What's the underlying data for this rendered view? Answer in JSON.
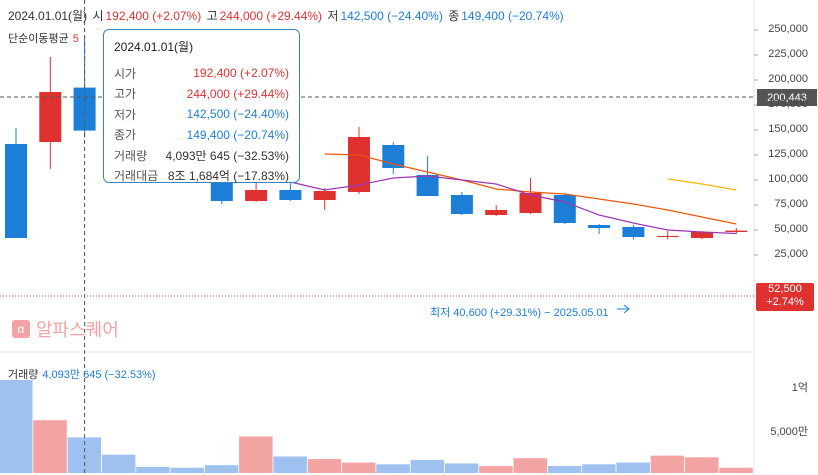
{
  "header": {
    "date": "2024.01.01(월)",
    "open_label": "시",
    "open_value": "192,400 (+2.07%)",
    "high_label": "고",
    "high_value": "244,000 (+29.44%)",
    "low_label": "저",
    "low_value": "142,500 (−24.40%)",
    "close_label": "종",
    "close_value": "149,400 (−20.74%)"
  },
  "ma_legend": {
    "label": "단순이동평균",
    "ma5": "5"
  },
  "volume_legend": {
    "label": "거래량",
    "value": "4,093만 645 (−32.53%)"
  },
  "tooltip": {
    "date": "2024.01.01(월)",
    "rows": [
      {
        "k": "시가",
        "v": "192,400 (+2.07%)",
        "color": "#e03131"
      },
      {
        "k": "고가",
        "v": "244,000 (+29.44%)",
        "color": "#e03131"
      },
      {
        "k": "저가",
        "v": "142,500 (−24.40%)",
        "color": "#1c7ed6"
      },
      {
        "k": "종가",
        "v": "149,400 (−20.74%)",
        "color": "#1c7ed6"
      },
      {
        "k": "거래량",
        "v": "4,093만 645 (−32.53%)",
        "color": "#333333"
      },
      {
        "k": "거래대금",
        "v": "8조 1,684억 (−17.83%)",
        "color": "#333333"
      }
    ]
  },
  "watermark": {
    "icon": "α",
    "text": "알파스퀘어"
  },
  "crosshair_price": "200,443",
  "last_price": {
    "price": "52,500",
    "change": "+2.74%"
  },
  "low_annotation": "최저 40,600 (+29.31%) − 2025.05.01",
  "colors": {
    "up": "#e03131",
    "down": "#1c7ed6",
    "vol_up": "#f4a3a3",
    "vol_down": "#9ec1ef",
    "ma5": "#9c36b5",
    "ma10": "#e8590c",
    "ma20": "#f2b705"
  },
  "chart_data": {
    "type": "candlestick",
    "price_ticks": [
      "250,000",
      "225,000",
      "200,000",
      "175,000",
      "150,000",
      "125,000",
      "100,000",
      "75,000",
      "50,000",
      "25,000"
    ],
    "price_tick_values": [
      250000,
      225000,
      200000,
      175000,
      150000,
      125000,
      100000,
      75000,
      50000,
      25000
    ],
    "volume_ticks": [
      "1억",
      "5,000만"
    ],
    "volume_tick_values": [
      100000000,
      50000000
    ],
    "candles": [
      {
        "o": 136000,
        "h": 152000,
        "l": 42000,
        "c": 42000,
        "v": 107000000
      },
      {
        "o": 138000,
        "h": 223000,
        "l": 111000,
        "c": 188000,
        "v": 60700000
      },
      {
        "o": 192400,
        "h": 244000,
        "l": 142500,
        "c": 149400,
        "v": 40930645
      },
      {
        "o": 175000,
        "h": 182000,
        "l": 152000,
        "c": 158000,
        "v": 21000000
      },
      {
        "o": 140000,
        "h": 145000,
        "l": 128000,
        "c": 130000,
        "v": 7000000
      },
      {
        "o": 128000,
        "h": 136000,
        "l": 103000,
        "c": 116000,
        "v": 6000000
      },
      {
        "o": 116000,
        "h": 118000,
        "l": 76000,
        "c": 79000,
        "v": 9000000
      },
      {
        "o": 79000,
        "h": 155000,
        "l": 78000,
        "c": 90000,
        "v": 42000000
      },
      {
        "o": 90000,
        "h": 108000,
        "l": 79000,
        "c": 80000,
        "v": 19000000
      },
      {
        "o": 80000,
        "h": 92000,
        "l": 70000,
        "c": 89000,
        "v": 16000000
      },
      {
        "o": 88000,
        "h": 153000,
        "l": 86000,
        "c": 143000,
        "v": 12000000
      },
      {
        "o": 135000,
        "h": 138000,
        "l": 106000,
        "c": 112000,
        "v": 10000000
      },
      {
        "o": 105000,
        "h": 124000,
        "l": 84000,
        "c": 84000,
        "v": 15000000
      },
      {
        "o": 85000,
        "h": 88000,
        "l": 65000,
        "c": 66000,
        "v": 11000000
      },
      {
        "o": 65000,
        "h": 75000,
        "l": 64000,
        "c": 70000,
        "v": 8000000
      },
      {
        "o": 67000,
        "h": 102000,
        "l": 66000,
        "c": 87000,
        "v": 17000000
      },
      {
        "o": 85000,
        "h": 87000,
        "l": 56000,
        "c": 57000,
        "v": 8000000
      },
      {
        "o": 55000,
        "h": 56000,
        "l": 46000,
        "c": 52000,
        "v": 10000000
      },
      {
        "o": 53000,
        "h": 55000,
        "l": 40600,
        "c": 43000,
        "v": 12000000
      },
      {
        "o": 44000,
        "h": 49000,
        "l": 40800,
        "c": 44000,
        "v": 20000000
      },
      {
        "o": 42000,
        "h": 49000,
        "l": 41000,
        "c": 48000,
        "v": 18000000
      },
      {
        "o": 48000,
        "h": 52000,
        "l": 46000,
        "c": 49400,
        "v": 6000000
      }
    ],
    "ma5": [
      null,
      null,
      null,
      null,
      142000,
      138000,
      121000,
      115000,
      98000,
      90000,
      95000,
      102000,
      104000,
      100000,
      96000,
      85000,
      78000,
      65000,
      57000,
      50000,
      48000,
      46500
    ],
    "ma10": [
      null,
      null,
      null,
      null,
      null,
      null,
      null,
      null,
      null,
      126000,
      125000,
      116000,
      108000,
      100000,
      91000,
      88000,
      86000,
      81000,
      76000,
      70000,
      63000,
      56000
    ],
    "ma20": [
      null,
      null,
      null,
      null,
      null,
      null,
      null,
      null,
      null,
      null,
      null,
      null,
      null,
      null,
      null,
      null,
      null,
      null,
      null,
      101000,
      96000,
      90000
    ]
  }
}
